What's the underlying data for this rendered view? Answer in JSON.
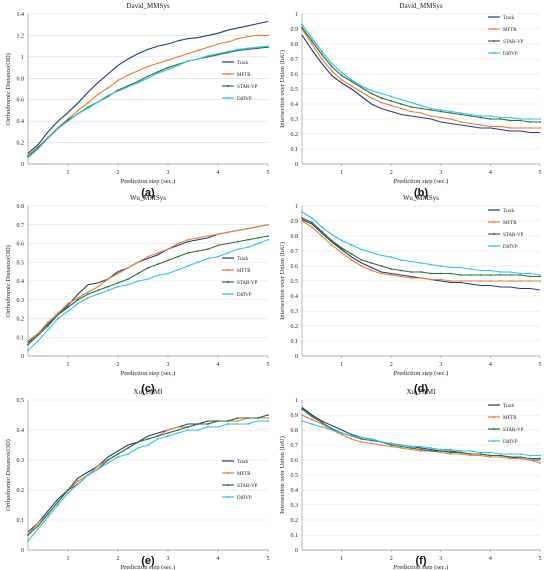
{
  "colors": {
    "Track": "#1f3d7a",
    "MFTR": "#ed7d31",
    "STAR-VP": "#2e6f40",
    "DiffVP": "#2ec4e6"
  },
  "chart_data": [
    {
      "type": "line",
      "title": "David_MMSys",
      "caption": "(a)",
      "xlabel": "Prediction step (sec.)",
      "ylabel": "Orthodromic Distance(OD)",
      "xlim": [
        0.2,
        5
      ],
      "ylim": [
        0,
        1.4
      ],
      "xticks": [
        "1",
        "2",
        "3",
        "4",
        "5"
      ],
      "yticks": [
        "0",
        "0.2",
        "0.4",
        "0.6",
        "0.8",
        "1",
        "1.2",
        "1.4"
      ],
      "legend": "right",
      "x": [
        0.2,
        0.4,
        0.6,
        0.8,
        1.0,
        1.2,
        1.4,
        1.6,
        1.8,
        2.0,
        2.2,
        2.4,
        2.6,
        2.8,
        3.0,
        3.2,
        3.4,
        3.6,
        3.8,
        4.0,
        4.2,
        4.4,
        4.6,
        4.8,
        5.0
      ],
      "series": [
        {
          "name": "Track",
          "values": [
            0.1,
            0.18,
            0.3,
            0.4,
            0.48,
            0.57,
            0.67,
            0.76,
            0.84,
            0.92,
            0.98,
            1.03,
            1.07,
            1.1,
            1.12,
            1.15,
            1.17,
            1.18,
            1.2,
            1.22,
            1.25,
            1.27,
            1.29,
            1.31,
            1.33
          ]
        },
        {
          "name": "MFTR",
          "values": [
            0.08,
            0.16,
            0.25,
            0.34,
            0.42,
            0.5,
            0.57,
            0.65,
            0.71,
            0.78,
            0.83,
            0.87,
            0.91,
            0.94,
            0.97,
            1.0,
            1.03,
            1.06,
            1.09,
            1.12,
            1.14,
            1.17,
            1.19,
            1.2,
            1.2
          ]
        },
        {
          "name": "STAR-VP",
          "values": [
            0.07,
            0.15,
            0.24,
            0.33,
            0.41,
            0.47,
            0.53,
            0.58,
            0.63,
            0.69,
            0.73,
            0.77,
            0.82,
            0.86,
            0.9,
            0.93,
            0.96,
            0.98,
            1.0,
            1.02,
            1.04,
            1.06,
            1.07,
            1.08,
            1.09
          ]
        },
        {
          "name": "DiffVP",
          "values": [
            0.06,
            0.14,
            0.24,
            0.33,
            0.4,
            0.47,
            0.52,
            0.58,
            0.64,
            0.68,
            0.72,
            0.76,
            0.8,
            0.85,
            0.88,
            0.92,
            0.96,
            0.98,
            1.01,
            1.03,
            1.05,
            1.07,
            1.08,
            1.09,
            1.1
          ]
        }
      ]
    },
    {
      "type": "line",
      "title": "David_MMSys",
      "caption": "(b)",
      "xlabel": "Prediction step (sec.)",
      "ylabel": "Intersection over Union (IoU)",
      "xlim": [
        0.2,
        5
      ],
      "ylim": [
        0,
        1
      ],
      "xticks": [
        "1",
        "2",
        "3",
        "4",
        "5"
      ],
      "yticks": [
        "0",
        "0.1",
        "0.2",
        "0.3",
        "0.4",
        "0.5",
        "0.6",
        "0.7",
        "0.8",
        "0.9",
        "1"
      ],
      "legend": "top-right",
      "x": [
        0.2,
        0.4,
        0.6,
        0.8,
        1.0,
        1.2,
        1.4,
        1.6,
        1.8,
        2.0,
        2.2,
        2.4,
        2.6,
        2.8,
        3.0,
        3.2,
        3.4,
        3.6,
        3.8,
        4.0,
        4.2,
        4.4,
        4.6,
        4.8,
        5.0
      ],
      "series": [
        {
          "name": "Track",
          "values": [
            0.86,
            0.76,
            0.67,
            0.59,
            0.54,
            0.5,
            0.45,
            0.4,
            0.37,
            0.35,
            0.33,
            0.32,
            0.31,
            0.3,
            0.28,
            0.27,
            0.26,
            0.25,
            0.24,
            0.24,
            0.23,
            0.22,
            0.22,
            0.21,
            0.21
          ]
        },
        {
          "name": "MFTR",
          "values": [
            0.9,
            0.8,
            0.7,
            0.62,
            0.56,
            0.52,
            0.48,
            0.44,
            0.41,
            0.39,
            0.37,
            0.35,
            0.34,
            0.32,
            0.31,
            0.3,
            0.28,
            0.27,
            0.26,
            0.25,
            0.25,
            0.24,
            0.24,
            0.24,
            0.24
          ]
        },
        {
          "name": "STAR-VP",
          "values": [
            0.91,
            0.82,
            0.73,
            0.65,
            0.59,
            0.55,
            0.51,
            0.47,
            0.44,
            0.42,
            0.4,
            0.38,
            0.37,
            0.36,
            0.35,
            0.34,
            0.33,
            0.32,
            0.31,
            0.3,
            0.3,
            0.29,
            0.29,
            0.28,
            0.28
          ]
        },
        {
          "name": "DiffVP",
          "values": [
            0.93,
            0.84,
            0.75,
            0.67,
            0.61,
            0.56,
            0.52,
            0.49,
            0.47,
            0.45,
            0.43,
            0.41,
            0.39,
            0.37,
            0.36,
            0.35,
            0.34,
            0.33,
            0.32,
            0.32,
            0.31,
            0.31,
            0.3,
            0.3,
            0.3
          ]
        }
      ]
    },
    {
      "type": "line",
      "title": "Wu_MMSys",
      "caption": "(c)",
      "xlabel": "Prediction step (sec.)",
      "ylabel": "Orthodromic Distance(OD)",
      "xlim": [
        0.2,
        5
      ],
      "ylim": [
        0,
        0.8
      ],
      "xticks": [
        "1",
        "2",
        "3",
        "4",
        "5"
      ],
      "yticks": [
        "0",
        "0.1",
        "0.2",
        "0.3",
        "0.4",
        "0.5",
        "0.6",
        "0.7",
        "0.8"
      ],
      "legend": "right",
      "x": [
        0.2,
        0.4,
        0.6,
        0.8,
        1.0,
        1.2,
        1.4,
        1.6,
        1.8,
        2.0,
        2.2,
        2.4,
        2.6,
        2.8,
        3.0,
        3.2,
        3.4,
        3.6,
        3.8,
        4.0,
        4.2,
        4.4,
        4.6,
        4.8,
        5.0
      ],
      "series": [
        {
          "name": "Track",
          "values": [
            0.07,
            0.12,
            0.17,
            0.22,
            0.27,
            0.33,
            0.38,
            0.39,
            0.41,
            0.45,
            0.47,
            0.5,
            0.52,
            0.54,
            0.57,
            0.59,
            0.61,
            0.62,
            0.63,
            0.65,
            0.66,
            0.67,
            0.68,
            0.69,
            0.7
          ]
        },
        {
          "name": "MFTR",
          "values": [
            0.08,
            0.12,
            0.18,
            0.23,
            0.28,
            0.31,
            0.34,
            0.37,
            0.41,
            0.44,
            0.47,
            0.5,
            0.53,
            0.55,
            0.57,
            0.6,
            0.62,
            0.63,
            0.64,
            0.65,
            0.66,
            0.67,
            0.68,
            0.69,
            0.7
          ]
        },
        {
          "name": "STAR-VP",
          "values": [
            0.06,
            0.11,
            0.16,
            0.22,
            0.26,
            0.3,
            0.33,
            0.35,
            0.37,
            0.39,
            0.41,
            0.44,
            0.47,
            0.49,
            0.51,
            0.53,
            0.55,
            0.56,
            0.57,
            0.59,
            0.6,
            0.61,
            0.62,
            0.63,
            0.64
          ]
        },
        {
          "name": "DiffVP",
          "values": [
            0.03,
            0.08,
            0.14,
            0.2,
            0.24,
            0.28,
            0.31,
            0.33,
            0.35,
            0.37,
            0.38,
            0.4,
            0.41,
            0.43,
            0.44,
            0.46,
            0.48,
            0.5,
            0.52,
            0.53,
            0.55,
            0.57,
            0.58,
            0.6,
            0.62
          ]
        }
      ]
    },
    {
      "type": "line",
      "title": "Wu_MMSys",
      "caption": "(d)",
      "xlabel": "Prediction step (sec.)",
      "ylabel": "Intersection over Union (IoU)",
      "xlim": [
        0.2,
        5
      ],
      "ylim": [
        0,
        1
      ],
      "xticks": [
        "1",
        "2",
        "3",
        "4",
        "5"
      ],
      "yticks": [
        "0",
        "0.1",
        "0.2",
        "0.3",
        "0.4",
        "0.5",
        "0.6",
        "0.7",
        "0.8",
        "0.9",
        "1"
      ],
      "legend": "top-right",
      "x": [
        0.2,
        0.4,
        0.6,
        0.8,
        1.0,
        1.2,
        1.4,
        1.6,
        1.8,
        2.0,
        2.2,
        2.4,
        2.6,
        2.8,
        3.0,
        3.2,
        3.4,
        3.6,
        3.8,
        4.0,
        4.2,
        4.4,
        4.6,
        4.8,
        5.0
      ],
      "series": [
        {
          "name": "Track",
          "values": [
            0.91,
            0.88,
            0.82,
            0.76,
            0.71,
            0.66,
            0.62,
            0.59,
            0.56,
            0.55,
            0.54,
            0.53,
            0.52,
            0.51,
            0.5,
            0.49,
            0.49,
            0.48,
            0.47,
            0.47,
            0.46,
            0.46,
            0.45,
            0.45,
            0.44
          ]
        },
        {
          "name": "MFTR",
          "values": [
            0.9,
            0.86,
            0.8,
            0.74,
            0.69,
            0.64,
            0.6,
            0.57,
            0.55,
            0.54,
            0.53,
            0.52,
            0.52,
            0.51,
            0.51,
            0.5,
            0.5,
            0.5,
            0.5,
            0.5,
            0.5,
            0.5,
            0.5,
            0.5,
            0.5
          ]
        },
        {
          "name": "STAR-VP",
          "values": [
            0.92,
            0.89,
            0.83,
            0.77,
            0.72,
            0.68,
            0.64,
            0.62,
            0.6,
            0.58,
            0.57,
            0.56,
            0.56,
            0.55,
            0.55,
            0.55,
            0.54,
            0.54,
            0.54,
            0.54,
            0.54,
            0.54,
            0.54,
            0.53,
            0.53
          ]
        },
        {
          "name": "DiffVP",
          "values": [
            0.96,
            0.92,
            0.86,
            0.81,
            0.77,
            0.74,
            0.71,
            0.69,
            0.67,
            0.66,
            0.64,
            0.63,
            0.62,
            0.61,
            0.6,
            0.59,
            0.59,
            0.58,
            0.57,
            0.57,
            0.56,
            0.56,
            0.55,
            0.55,
            0.54
          ]
        }
      ]
    },
    {
      "type": "line",
      "title": "Xu_PAMI",
      "caption": "(e)",
      "xlabel": "Prediction step (sec.)",
      "ylabel": "Orthodromic Distance(OD)",
      "xlim": [
        0.2,
        5
      ],
      "ylim": [
        0,
        0.5
      ],
      "xticks": [
        "1",
        "2",
        "3",
        "4",
        "5"
      ],
      "yticks": [
        "0",
        "0.1",
        "0.2",
        "0.3",
        "0.4",
        "0.5"
      ],
      "legend": "right",
      "x": [
        0.2,
        0.4,
        0.6,
        0.8,
        1.0,
        1.2,
        1.4,
        1.6,
        1.8,
        2.0,
        2.2,
        2.4,
        2.6,
        2.8,
        3.0,
        3.2,
        3.4,
        3.6,
        3.8,
        4.0,
        4.2,
        4.4,
        4.6,
        4.8,
        5.0
      ],
      "series": [
        {
          "name": "Track",
          "values": [
            0.06,
            0.09,
            0.13,
            0.17,
            0.2,
            0.24,
            0.26,
            0.28,
            0.31,
            0.33,
            0.35,
            0.36,
            0.38,
            0.39,
            0.4,
            0.41,
            0.42,
            0.42,
            0.43,
            0.43,
            0.43,
            0.44,
            0.44,
            0.44,
            0.45
          ]
        },
        {
          "name": "MFTR",
          "values": [
            0.05,
            0.09,
            0.12,
            0.16,
            0.2,
            0.23,
            0.25,
            0.28,
            0.3,
            0.32,
            0.34,
            0.36,
            0.37,
            0.38,
            0.4,
            0.41,
            0.41,
            0.42,
            0.42,
            0.43,
            0.43,
            0.43,
            0.44,
            0.44,
            0.44
          ]
        },
        {
          "name": "STAR-VP",
          "values": [
            0.05,
            0.08,
            0.12,
            0.16,
            0.2,
            0.22,
            0.25,
            0.27,
            0.3,
            0.32,
            0.34,
            0.36,
            0.37,
            0.38,
            0.39,
            0.4,
            0.41,
            0.42,
            0.42,
            0.43,
            0.43,
            0.44,
            0.44,
            0.44,
            0.45
          ]
        },
        {
          "name": "DiffVP",
          "values": [
            0.03,
            0.07,
            0.11,
            0.15,
            0.19,
            0.22,
            0.25,
            0.27,
            0.29,
            0.31,
            0.32,
            0.34,
            0.35,
            0.37,
            0.38,
            0.39,
            0.4,
            0.4,
            0.41,
            0.41,
            0.42,
            0.42,
            0.42,
            0.43,
            0.43
          ]
        }
      ]
    },
    {
      "type": "line",
      "title": "Xu_PAMI",
      "caption": "(f)",
      "xlabel": "Prediction step (sec.)",
      "ylabel": "Intersection over Union (IoU)",
      "xlim": [
        0.2,
        5
      ],
      "ylim": [
        0,
        1
      ],
      "xticks": [
        "1",
        "2",
        "3",
        "4",
        "5"
      ],
      "yticks": [
        "0",
        "0.1",
        "0.2",
        "0.3",
        "0.4",
        "0.5",
        "0.6",
        "0.7",
        "0.8",
        "0.9",
        "1"
      ],
      "legend": "top-right",
      "x": [
        0.2,
        0.4,
        0.6,
        0.8,
        1.0,
        1.2,
        1.4,
        1.6,
        1.8,
        2.0,
        2.2,
        2.4,
        2.6,
        2.8,
        3.0,
        3.2,
        3.4,
        3.6,
        3.8,
        4.0,
        4.2,
        4.4,
        4.6,
        4.8,
        5.0
      ],
      "series": [
        {
          "name": "Track",
          "values": [
            0.95,
            0.9,
            0.86,
            0.83,
            0.8,
            0.77,
            0.75,
            0.74,
            0.72,
            0.71,
            0.7,
            0.69,
            0.68,
            0.67,
            0.66,
            0.66,
            0.65,
            0.64,
            0.64,
            0.63,
            0.63,
            0.62,
            0.61,
            0.6,
            0.6
          ]
        },
        {
          "name": "MFTR",
          "values": [
            0.9,
            0.87,
            0.84,
            0.8,
            0.77,
            0.74,
            0.72,
            0.71,
            0.7,
            0.69,
            0.68,
            0.67,
            0.66,
            0.66,
            0.65,
            0.64,
            0.64,
            0.63,
            0.63,
            0.62,
            0.62,
            0.61,
            0.61,
            0.6,
            0.58
          ]
        },
        {
          "name": "STAR-VP",
          "values": [
            0.94,
            0.89,
            0.85,
            0.81,
            0.78,
            0.76,
            0.74,
            0.73,
            0.72,
            0.7,
            0.69,
            0.68,
            0.67,
            0.66,
            0.66,
            0.65,
            0.65,
            0.64,
            0.64,
            0.63,
            0.63,
            0.62,
            0.62,
            0.61,
            0.61
          ]
        },
        {
          "name": "DiffVP",
          "values": [
            0.86,
            0.84,
            0.82,
            0.8,
            0.78,
            0.76,
            0.75,
            0.74,
            0.72,
            0.71,
            0.7,
            0.69,
            0.69,
            0.68,
            0.67,
            0.67,
            0.66,
            0.66,
            0.65,
            0.65,
            0.64,
            0.64,
            0.64,
            0.63,
            0.63
          ]
        }
      ]
    }
  ]
}
